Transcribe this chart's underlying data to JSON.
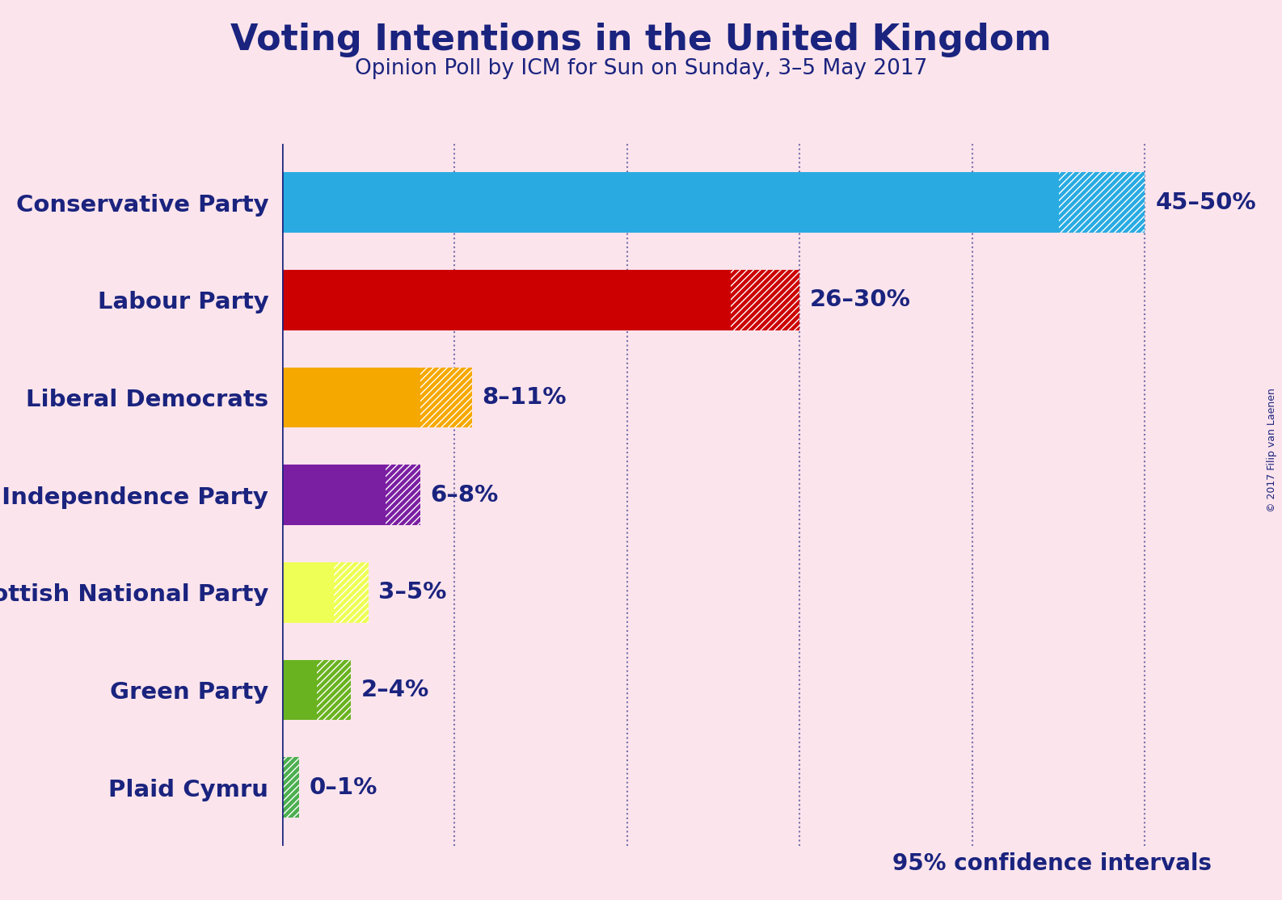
{
  "title": "Voting Intentions in the United Kingdom",
  "subtitle": "Opinion Poll by ICM for Sun on Sunday, 3–5 May 2017",
  "copyright": "© 2017 Filip van Laenen",
  "confidence_label": "95% confidence intervals",
  "background_color": "#fce4ec",
  "title_color": "#1a237e",
  "subtitle_color": "#1a237e",
  "parties": [
    "Conservative Party",
    "Labour Party",
    "Liberal Democrats",
    "UK Independence Party",
    "Scottish National Party",
    "Green Party",
    "Plaid Cymru"
  ],
  "low_values": [
    45,
    26,
    8,
    6,
    3,
    2,
    0
  ],
  "high_values": [
    50,
    30,
    11,
    8,
    5,
    4,
    1
  ],
  "colors": [
    "#29ABE2",
    "#CC0000",
    "#F5A800",
    "#7B1FA2",
    "#EEFF55",
    "#6AB320",
    "#4CAF50"
  ],
  "labels": [
    "45–50%",
    "26–30%",
    "8–11%",
    "6–8%",
    "3–5%",
    "2–4%",
    "0–1%"
  ],
  "xlim": [
    0,
    52
  ],
  "label_color": "#1a237e",
  "ytick_color": "#1a237e",
  "dotted_line_color": "#1a237e",
  "axis_color": "#1a237e",
  "bar_height": 0.62,
  "dotted_positions": [
    10,
    20,
    30,
    40,
    50
  ],
  "title_fontsize": 32,
  "subtitle_fontsize": 19,
  "label_fontsize": 21,
  "ytick_fontsize": 21,
  "confidence_fontsize": 20
}
